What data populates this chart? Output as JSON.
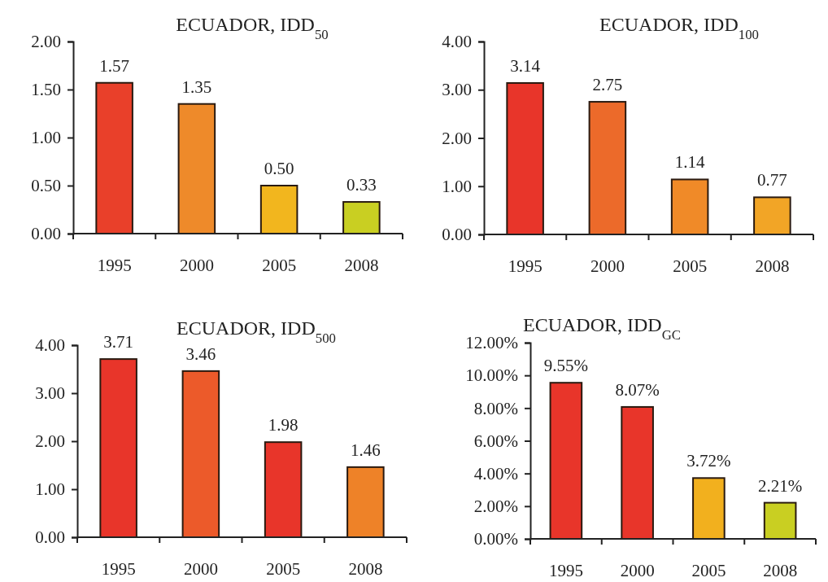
{
  "chart_data": [
    {
      "type": "bar",
      "title": "ECUADOR, IDD$_{50}$",
      "categories": [
        "1995",
        "2000",
        "2005",
        "2008"
      ],
      "values": [
        1.57,
        1.35,
        0.5,
        0.33
      ],
      "colors": [
        "#e9402a",
        "#ee8a2a",
        "#f2b61e",
        "#c9cf22"
      ],
      "ylim": [
        0,
        2
      ],
      "yticks": [
        {
          "value": 0,
          "label": "0.00"
        },
        {
          "value": 0.5,
          "label": "0.50"
        },
        {
          "value": 1,
          "label": "1.00"
        },
        {
          "value": 1.5,
          "label": "1.50"
        },
        {
          "value": 2,
          "label": "2.00"
        }
      ],
      "data_labels": true,
      "value_labels": [
        "1.57",
        "1.35",
        "0.50",
        "0.33"
      ]
    },
    {
      "type": "bar",
      "title": "ECUADOR, IDD$_{100}$",
      "categories": [
        "1995",
        "2000",
        "2005",
        "2008"
      ],
      "values": [
        3.14,
        2.75,
        1.14,
        0.77
      ],
      "colors": [
        "#e8352a",
        "#ec6a2a",
        "#f08a28",
        "#f2a526"
      ],
      "ylim": [
        0,
        4
      ],
      "yticks": [
        {
          "value": 0,
          "label": "0.00"
        },
        {
          "value": 1,
          "label": "1.00"
        },
        {
          "value": 2,
          "label": "2.00"
        },
        {
          "value": 3,
          "label": "3.00"
        },
        {
          "value": 4,
          "label": "4.00"
        }
      ],
      "data_labels": true,
      "value_labels": [
        "3.14",
        "2.75",
        "1.14",
        "0.77"
      ]
    },
    {
      "type": "bar",
      "title": "ECUADOR, IDD$_{500}$",
      "categories": [
        "1995",
        "2000",
        "2005",
        "2008"
      ],
      "values": [
        3.71,
        3.46,
        1.98,
        1.46
      ],
      "colors": [
        "#e8352a",
        "#ec5a2a",
        "#e8352a",
        "#ee8228"
      ],
      "ylim": [
        0,
        4
      ],
      "yticks": [
        {
          "value": 0,
          "label": "0.00"
        },
        {
          "value": 1,
          "label": "1.00"
        },
        {
          "value": 2,
          "label": "2.00"
        },
        {
          "value": 3,
          "label": "3.00"
        },
        {
          "value": 4,
          "label": "4.00"
        }
      ],
      "data_labels": true,
      "value_labels": [
        "3.71",
        "3.46",
        "1.98",
        "1.46"
      ]
    },
    {
      "type": "bar",
      "title": "ECUADOR, IDD$_{GC}$",
      "categories": [
        "1995",
        "2000",
        "2005",
        "2008"
      ],
      "values": [
        9.55,
        8.07,
        3.72,
        2.21
      ],
      "colors": [
        "#e8352a",
        "#e8352a",
        "#f2b01e",
        "#c9cf22"
      ],
      "ylim": [
        0,
        12
      ],
      "yticks": [
        {
          "value": 0,
          "label": "0.00%"
        },
        {
          "value": 2,
          "label": "2.00%"
        },
        {
          "value": 4,
          "label": "4.00%"
        },
        {
          "value": 6,
          "label": "6.00%"
        },
        {
          "value": 8,
          "label": "8.00%"
        },
        {
          "value": 10,
          "label": "10.00%"
        },
        {
          "value": 12,
          "label": "12.00%"
        }
      ],
      "data_labels": true,
      "value_labels": [
        "9.55%",
        "8.07%",
        "3.72%",
        "2.21%"
      ]
    }
  ]
}
